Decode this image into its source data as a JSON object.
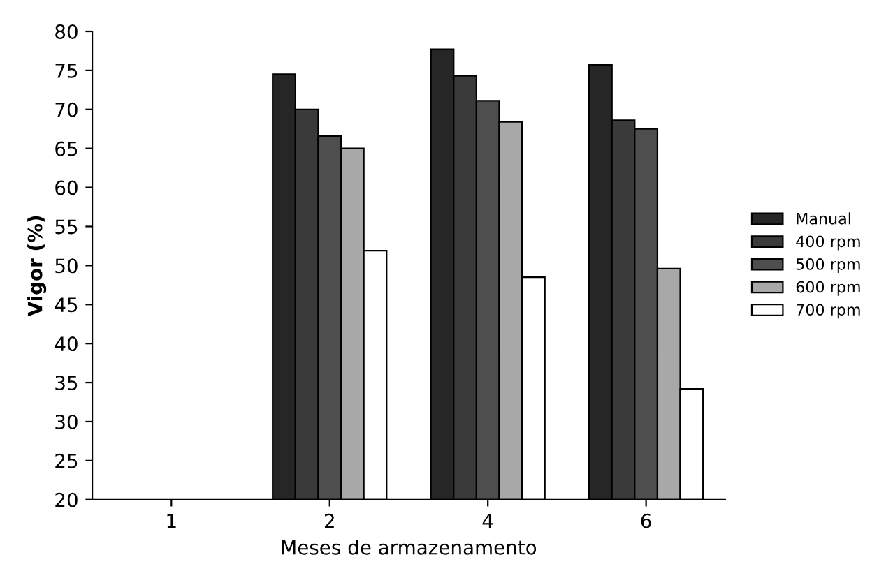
{
  "chart_data": {
    "type": "bar",
    "xlabel": "Meses de armazenamento",
    "ylabel": "Vigor (%)",
    "categories": [
      "1",
      "2",
      "4",
      "6"
    ],
    "series": [
      {
        "name": "Manual",
        "color": "#262626",
        "values": [
          null,
          74.5,
          77.7,
          75.7
        ]
      },
      {
        "name": "400 rpm",
        "color": "#3a3a3a",
        "values": [
          null,
          70,
          74.3,
          68.6
        ]
      },
      {
        "name": "500 rpm",
        "color": "#4e4e4e",
        "values": [
          null,
          66.6,
          71.1,
          67.5
        ]
      },
      {
        "name": "600 rpm",
        "color": "#a8a8a8",
        "values": [
          null,
          65,
          68.4,
          49.6
        ]
      },
      {
        "name": "700 rpm",
        "color": "#ffffff",
        "values": [
          null,
          51.9,
          48.5,
          34.2
        ]
      }
    ],
    "ylim": [
      20,
      80
    ],
    "yticks": [
      20,
      25,
      30,
      35,
      40,
      45,
      50,
      55,
      60,
      65,
      70,
      75,
      80
    ],
    "grid": false,
    "legend": "right"
  }
}
